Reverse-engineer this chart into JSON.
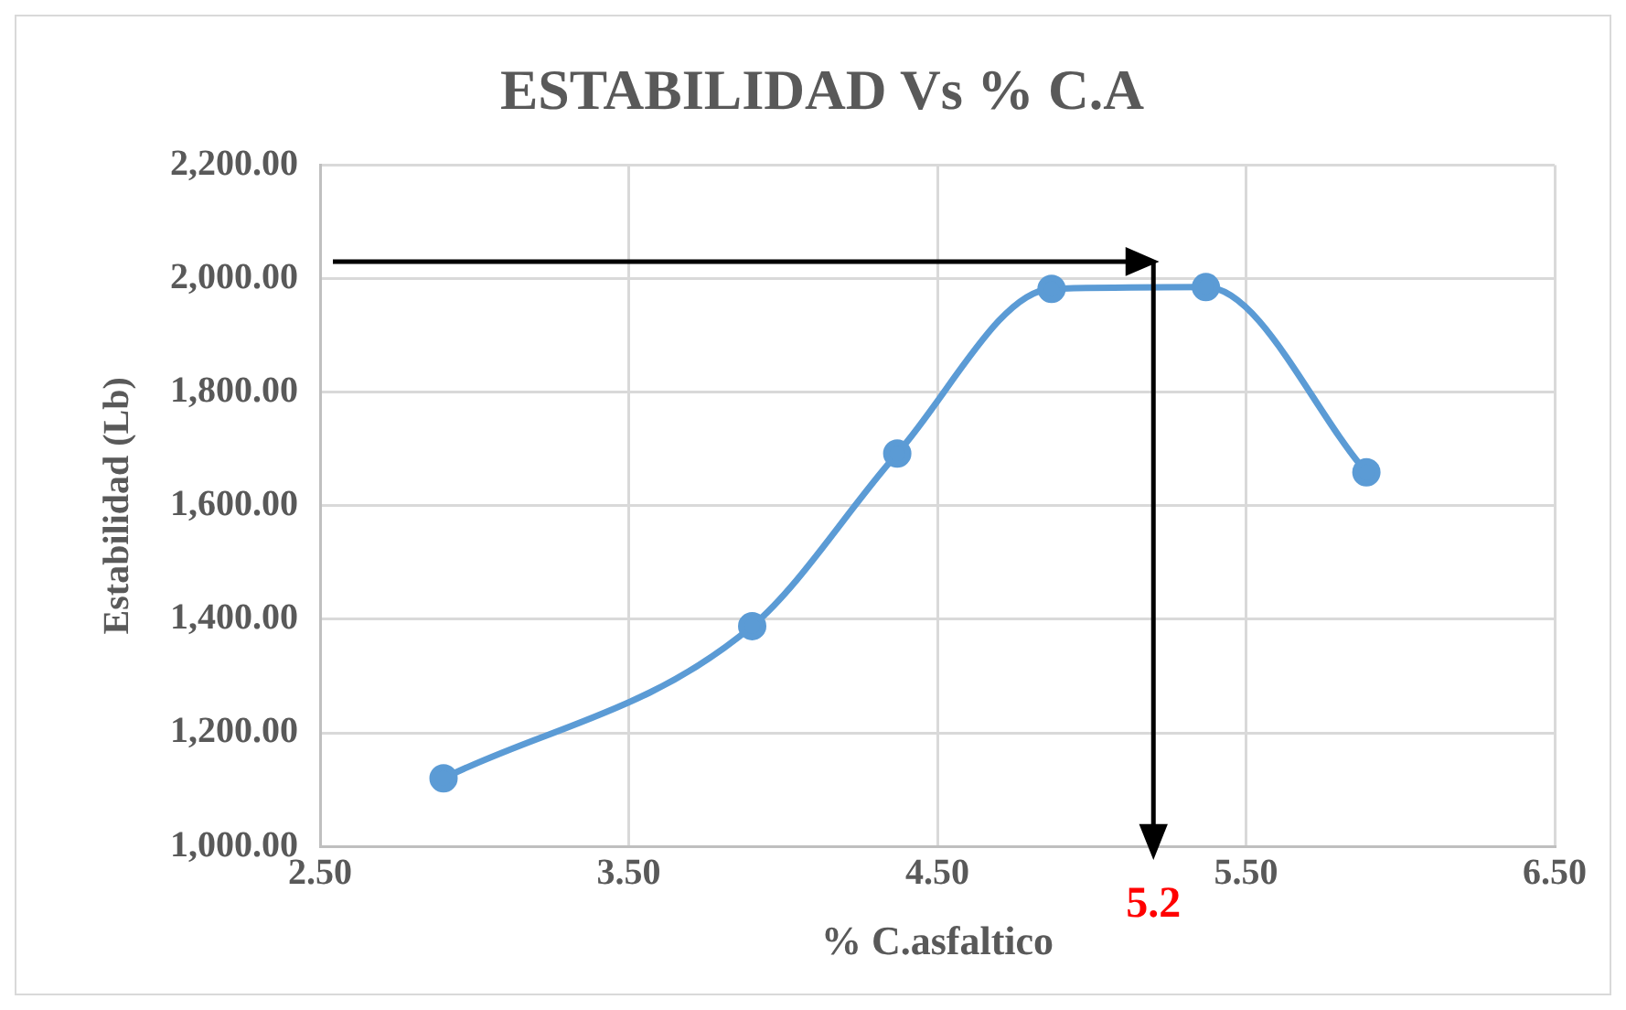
{
  "chart_data": {
    "type": "line",
    "title": "ESTABILIDAD Vs % C.A",
    "xlabel": "% C.asfaltico",
    "ylabel": "Estabilidad (Lb)",
    "x": [
      2.9,
      3.9,
      4.37,
      4.87,
      5.37,
      5.89
    ],
    "series": [
      {
        "color": "#5b9bd5",
        "values": [
          1120,
          1388,
          1692,
          1982,
          1985,
          1659
        ]
      }
    ],
    "xlim": [
      2.5,
      6.5
    ],
    "xticks": [
      {
        "value": 2.5,
        "label": "2.50"
      },
      {
        "value": 3.5,
        "label": "3.50"
      },
      {
        "value": 4.5,
        "label": "4.50"
      },
      {
        "value": 5.5,
        "label": "5.50"
      },
      {
        "value": 6.5,
        "label": "6.50"
      }
    ],
    "ylim": [
      1000,
      2200
    ],
    "yticks": [
      {
        "value": 1000,
        "label": "1,000.00"
      },
      {
        "value": 1200,
        "label": "1,200.00"
      },
      {
        "value": 1400,
        "label": "1,400.00"
      },
      {
        "value": 1600,
        "label": "1,600.00"
      },
      {
        "value": 1800,
        "label": "1,800.00"
      },
      {
        "value": 2000,
        "label": "2,000.00"
      },
      {
        "value": 2200,
        "label": "2,200.00"
      }
    ],
    "ref_lines": [
      {
        "axis": "y",
        "value": 2030,
        "color": "#000000"
      },
      {
        "axis": "x",
        "value": 5.2,
        "label": "5.2",
        "color": "#000000"
      }
    ],
    "grid": true,
    "marker": "circle",
    "line_style": "solid",
    "legend": false
  }
}
